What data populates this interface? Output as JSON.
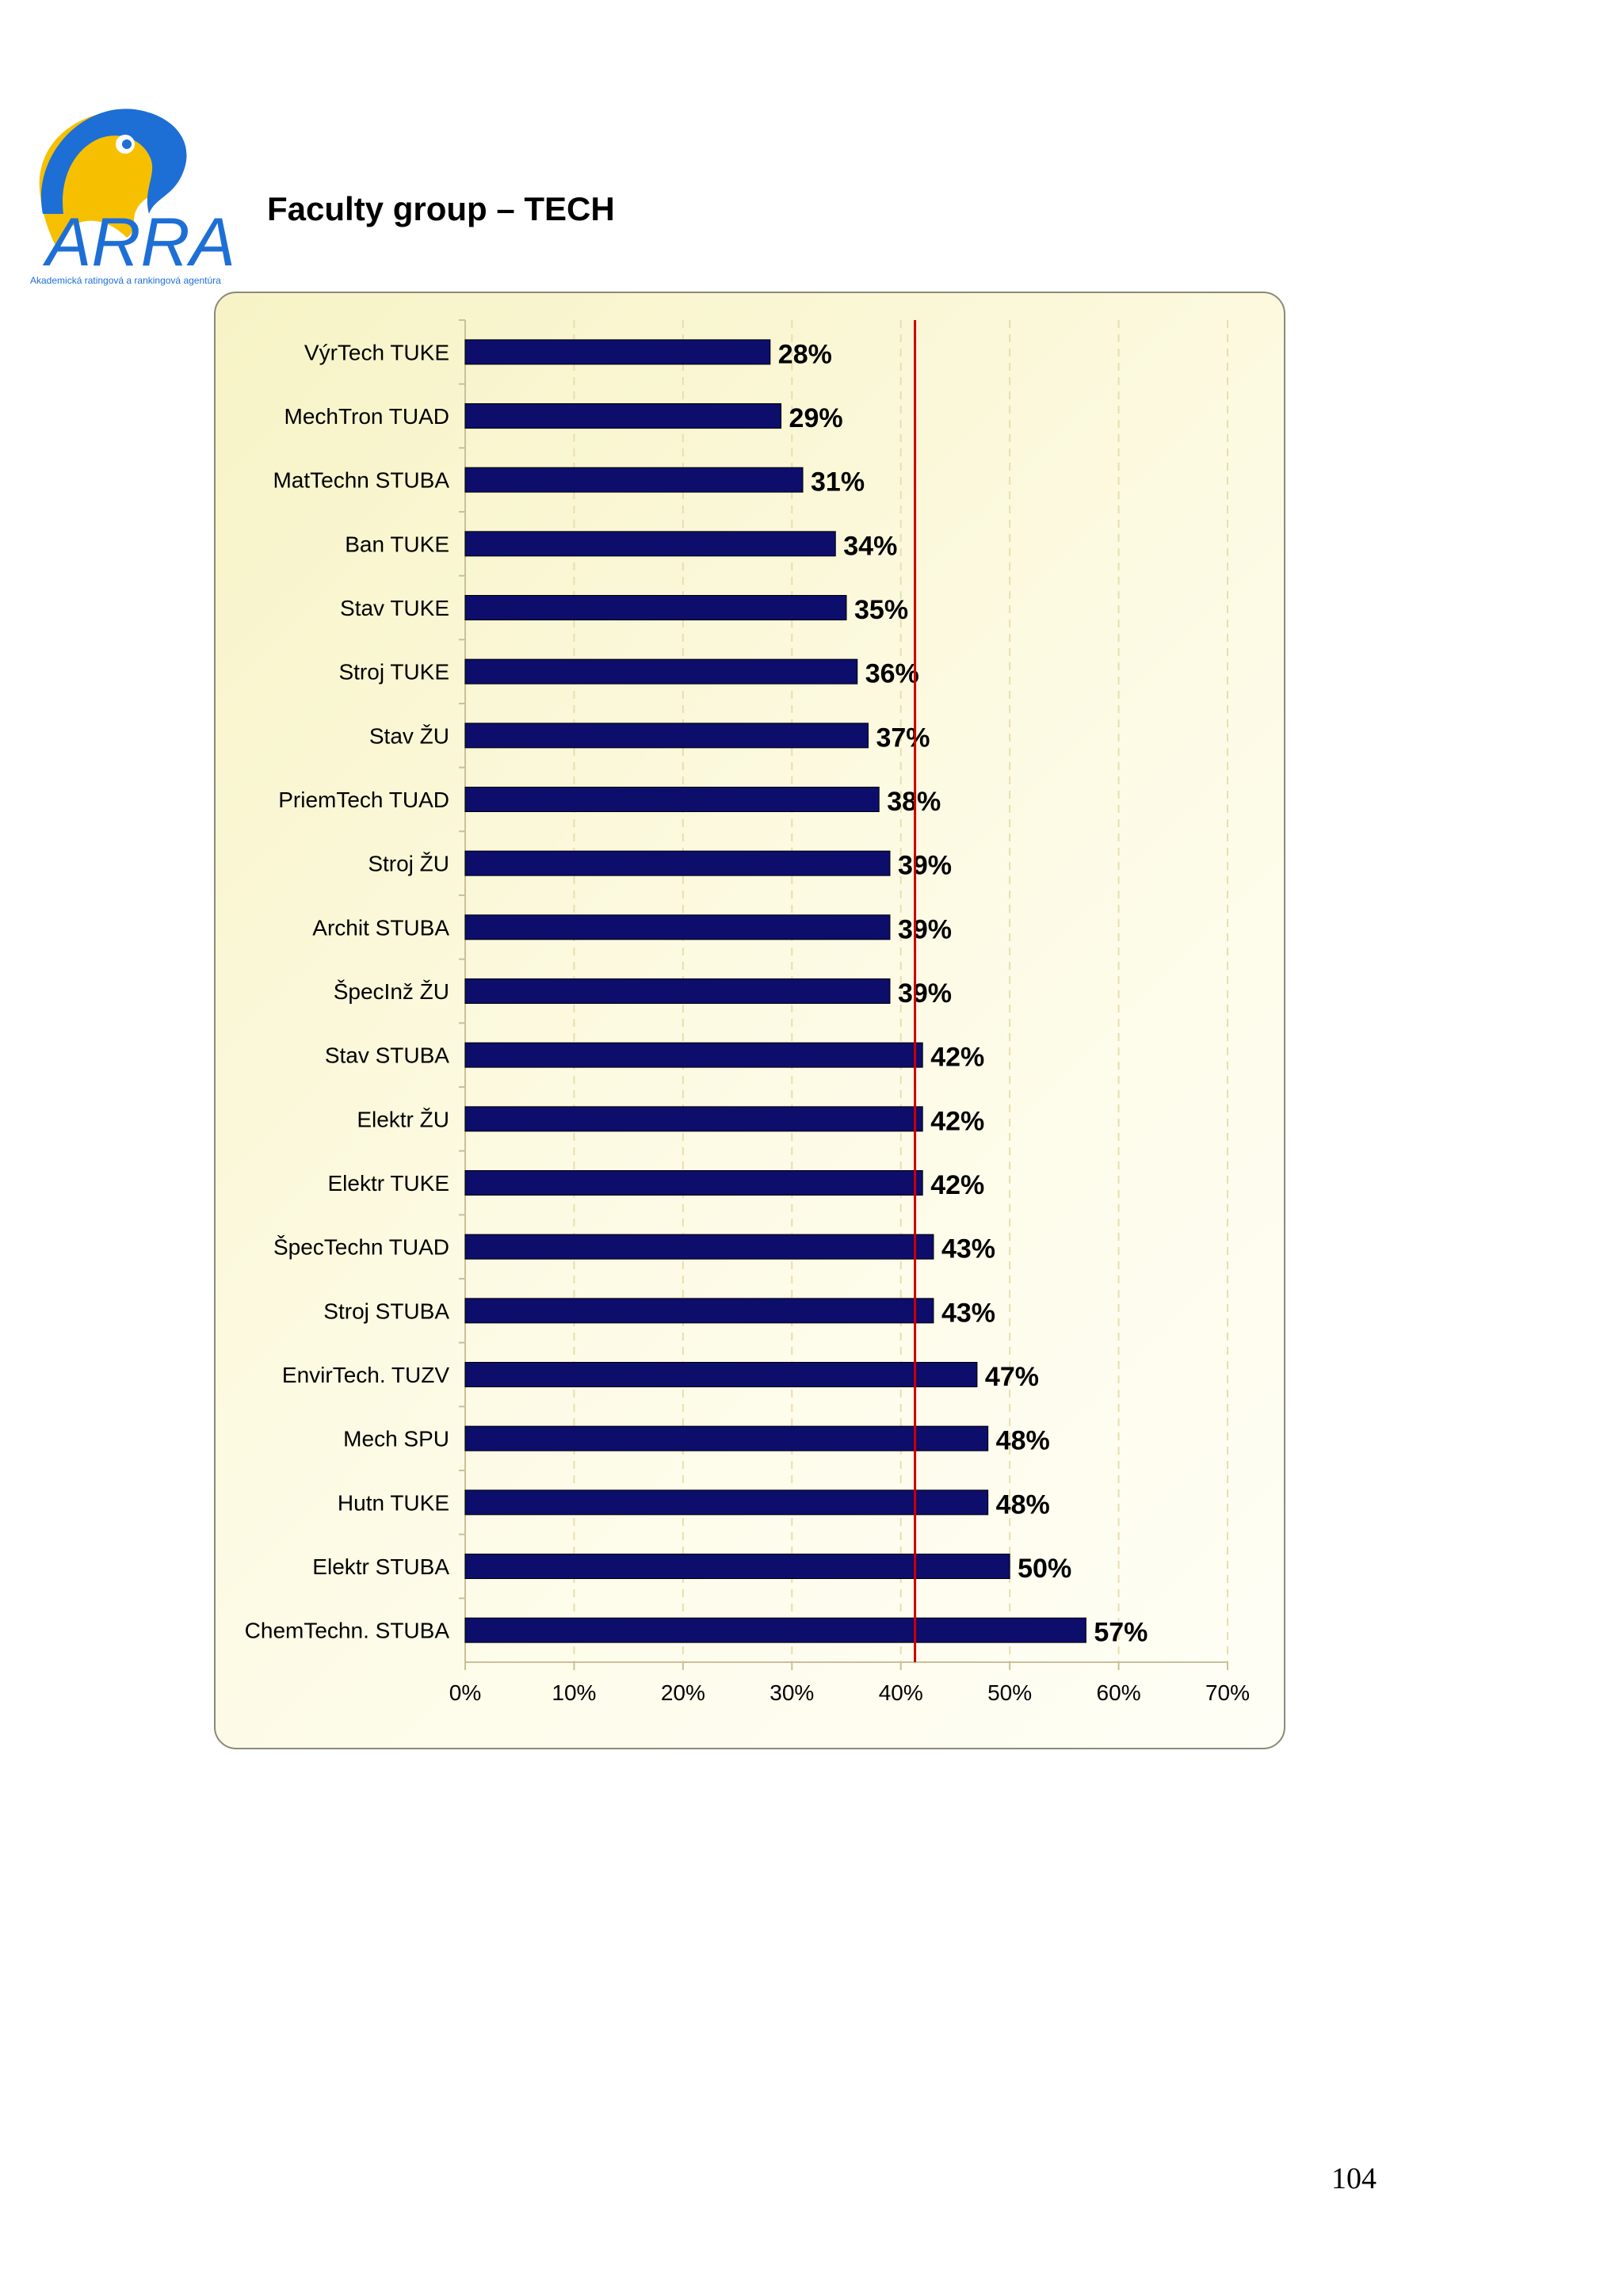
{
  "page": {
    "heading": "Faculty group – TECH",
    "page_number": "104"
  },
  "logo": {
    "wordmark": "ARRA",
    "tagline": "Akademická ratingová a rankingová agentúra"
  },
  "colors": {
    "bar": "#0d0d6b",
    "reference_line": "#cc0000",
    "logo_blue": "#1d6fd6",
    "logo_yellow": "#f6c000",
    "plot_background": "#faf7d3"
  },
  "chart_data": {
    "type": "bar",
    "orientation": "horizontal",
    "title": "",
    "xlabel": "",
    "ylabel": "",
    "categories": [
      "VýrTech TUKE",
      "MechTron TUAD",
      "MatTechn STUBA",
      "Ban TUKE",
      "Stav TUKE",
      "Stroj TUKE",
      "Stav ŽU",
      "PriemTech TUAD",
      "Stroj ŽU",
      "Archit STUBA",
      "ŠpecInž ŽU",
      "Stav STUBA",
      "Elektr ŽU",
      "Elektr TUKE",
      "ŠpecTechn TUAD",
      "Stroj STUBA",
      "EnvirTech. TUZV",
      "Mech SPU",
      "Hutn TUKE",
      "Elektr STUBA",
      "ChemTechn. STUBA"
    ],
    "values": [
      28,
      29,
      31,
      34,
      35,
      36,
      37,
      38,
      39,
      39,
      39,
      42,
      42,
      42,
      43,
      43,
      47,
      48,
      48,
      50,
      57
    ],
    "value_labels": [
      "28%",
      "29%",
      "31%",
      "34%",
      "35%",
      "36%",
      "37%",
      "38%",
      "39%",
      "39%",
      "39%",
      "42%",
      "42%",
      "42%",
      "43%",
      "43%",
      "47%",
      "48%",
      "48%",
      "50%",
      "57%"
    ],
    "x_ticks": [
      "0%",
      "10%",
      "20%",
      "30%",
      "40%",
      "50%",
      "60%",
      "70%"
    ],
    "xlim": [
      0,
      70
    ],
    "reference_line": 41.3,
    "grid": "vertical dashed"
  }
}
